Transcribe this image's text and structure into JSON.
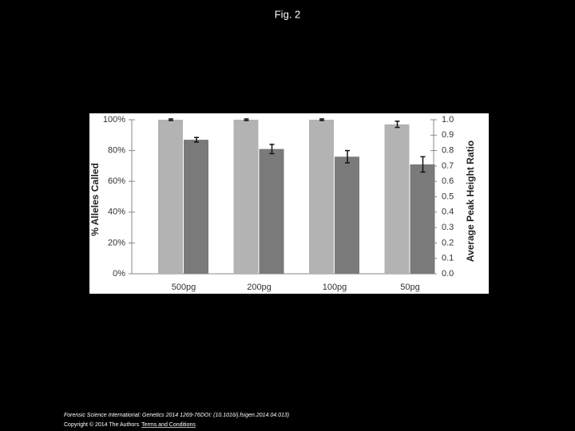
{
  "title": "Fig. 2",
  "chart_data": {
    "type": "bar",
    "y_label": "% Alleles Called",
    "y2_label": "Average Peak Height Ratio",
    "categories": [
      "500pg",
      "200pg",
      "100pg",
      "50pg"
    ],
    "series": [
      {
        "color": "#b3b3b3",
        "values": [
          100,
          100,
          100,
          97
        ],
        "errors": [
          0.5,
          0.5,
          0.5,
          2
        ]
      },
      {
        "color": "#7a7a7a",
        "values": [
          0.87,
          0.81,
          0.76,
          0.71
        ],
        "errors": [
          0.015,
          0.03,
          0.04,
          0.05
        ],
        "axis": "y2"
      }
    ],
    "ylim": [
      0,
      100
    ],
    "yticks": [
      {
        "value": 0,
        "label": "0%"
      },
      {
        "value": 20,
        "label": "20%"
      },
      {
        "value": 40,
        "label": "40%"
      },
      {
        "value": 60,
        "label": "60%"
      },
      {
        "value": 80,
        "label": "80%"
      },
      {
        "value": 100,
        "label": "100%"
      }
    ],
    "y2lim": [
      0,
      1
    ],
    "y2ticks": [
      {
        "value": 0,
        "label": "0.0"
      },
      0.1,
      0.2,
      0.3,
      0.4,
      0.5,
      0.6,
      0.7,
      0.8,
      0.9,
      {
        "value": 1,
        "label": "1.0"
      }
    ],
    "grid": false
  },
  "footer": {
    "citation": "Forensic Science International: Genetics 2014 1269-76DOI: (10.1016/j.fsigen.2014.04.013)",
    "copyright": "Copyright © 2014 The Authors",
    "link": "Terms and Conditions"
  }
}
